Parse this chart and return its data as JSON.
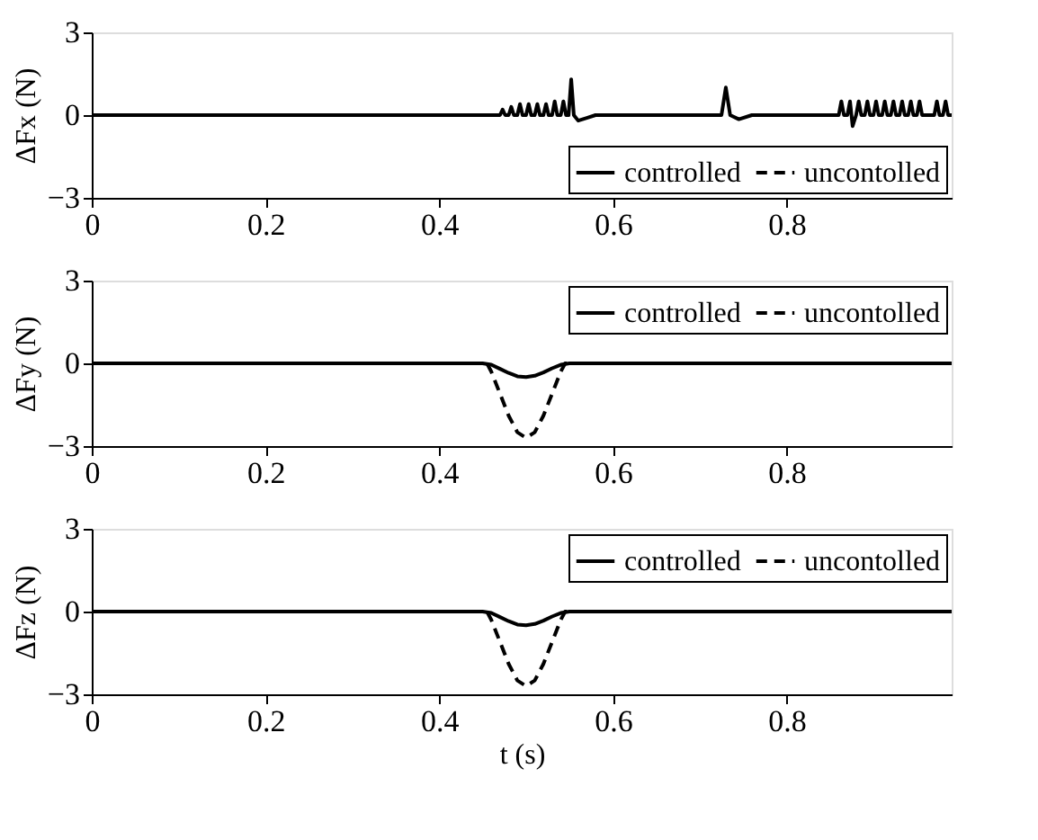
{
  "chart_data": [
    {
      "type": "line",
      "ylabel": "ΔFx (N)",
      "xlim": [
        0,
        0.99
      ],
      "xticks": [
        0,
        0.2,
        0.4,
        0.6,
        0.8
      ],
      "ylim": [
        -3,
        3
      ],
      "yticks": [
        -3,
        0,
        3
      ],
      "grid": false,
      "legend": "bottom right",
      "series": [
        {
          "name": "controlled",
          "color": "#000000",
          "line_style": "solid",
          "x": [
            0,
            0.47,
            0.473,
            0.476,
            0.48,
            0.483,
            0.486,
            0.49,
            0.493,
            0.496,
            0.5,
            0.503,
            0.506,
            0.51,
            0.513,
            0.516,
            0.52,
            0.523,
            0.526,
            0.53,
            0.533,
            0.536,
            0.54,
            0.543,
            0.546,
            0.549,
            0.552,
            0.555,
            0.56,
            0.57,
            0.58,
            0.6,
            0.725,
            0.73,
            0.735,
            0.745,
            0.76,
            0.86,
            0.863,
            0.866,
            0.87,
            0.873,
            0.876,
            0.88,
            0.883,
            0.886,
            0.89,
            0.893,
            0.896,
            0.9,
            0.903,
            0.906,
            0.91,
            0.913,
            0.916,
            0.92,
            0.923,
            0.926,
            0.93,
            0.933,
            0.936,
            0.94,
            0.943,
            0.946,
            0.95,
            0.953,
            0.956,
            0.97,
            0.973,
            0.976,
            0.98,
            0.983,
            0.986,
            0.99
          ],
          "values": [
            0,
            0,
            0.2,
            0,
            0,
            0.3,
            0,
            0,
            0.4,
            0,
            0,
            0.4,
            0,
            0,
            0.4,
            0,
            0,
            0.4,
            0,
            0,
            0.5,
            0,
            0,
            0.5,
            0,
            0,
            1.3,
            0,
            -0.2,
            -0.1,
            0,
            0,
            0,
            1.0,
            0,
            -0.15,
            0,
            0,
            0.5,
            0,
            0,
            0.5,
            -0.4,
            0,
            0.5,
            0,
            0,
            0.5,
            0,
            0,
            0.5,
            0,
            0,
            0.5,
            0,
            0,
            0.5,
            0,
            0,
            0.5,
            0,
            0,
            0.5,
            0,
            0,
            0.5,
            0,
            0,
            0.5,
            0,
            0,
            0.5,
            0,
            0
          ]
        },
        {
          "name": "uncontolled",
          "color": "#000000",
          "line_style": "dashed"
        }
      ]
    },
    {
      "type": "line",
      "ylabel": "ΔFy (N)",
      "xlim": [
        0,
        0.99
      ],
      "xticks": [
        0,
        0.2,
        0.4,
        0.6,
        0.8
      ],
      "ylim": [
        -3,
        3
      ],
      "yticks": [
        -3,
        0,
        3
      ],
      "grid": false,
      "legend": "top right",
      "series": [
        {
          "name": "controlled",
          "color": "#000000",
          "line_style": "solid",
          "x": [
            0,
            0.45,
            0.46,
            0.47,
            0.48,
            0.49,
            0.5,
            0.51,
            0.52,
            0.53,
            0.54,
            0.55,
            0.99
          ],
          "values": [
            0,
            0,
            -0.05,
            -0.2,
            -0.35,
            -0.47,
            -0.5,
            -0.45,
            -0.33,
            -0.18,
            -0.05,
            0,
            0
          ]
        },
        {
          "name": "uncontolled",
          "color": "#000000",
          "line_style": "dashed",
          "x": [
            0,
            0.455,
            0.46,
            0.47,
            0.48,
            0.49,
            0.5,
            0.51,
            0.52,
            0.53,
            0.54,
            0.545,
            0.99
          ],
          "values": [
            0,
            0,
            -0.3,
            -1.1,
            -1.9,
            -2.5,
            -2.7,
            -2.5,
            -1.9,
            -1.1,
            -0.3,
            0,
            0
          ]
        }
      ]
    },
    {
      "type": "line",
      "xlabel": "t (s)",
      "ylabel": "ΔFz (N)",
      "xlim": [
        0,
        0.99
      ],
      "xticks": [
        0,
        0.2,
        0.4,
        0.6,
        0.8
      ],
      "ylim": [
        -3,
        3
      ],
      "yticks": [
        -3,
        0,
        3
      ],
      "grid": false,
      "legend": "top right",
      "series": [
        {
          "name": "controlled",
          "color": "#000000",
          "line_style": "solid",
          "x": [
            0,
            0.45,
            0.46,
            0.47,
            0.48,
            0.49,
            0.5,
            0.51,
            0.52,
            0.53,
            0.54,
            0.55,
            0.99
          ],
          "values": [
            0,
            0,
            -0.05,
            -0.2,
            -0.35,
            -0.47,
            -0.5,
            -0.45,
            -0.33,
            -0.18,
            -0.05,
            0,
            0
          ]
        },
        {
          "name": "uncontolled",
          "color": "#000000",
          "line_style": "dashed",
          "x": [
            0,
            0.455,
            0.46,
            0.47,
            0.48,
            0.49,
            0.5,
            0.51,
            0.52,
            0.53,
            0.54,
            0.545,
            0.99
          ],
          "values": [
            0,
            0,
            -0.3,
            -1.1,
            -1.9,
            -2.5,
            -2.7,
            -2.5,
            -1.9,
            -1.1,
            -0.3,
            0,
            0
          ]
        }
      ]
    }
  ]
}
